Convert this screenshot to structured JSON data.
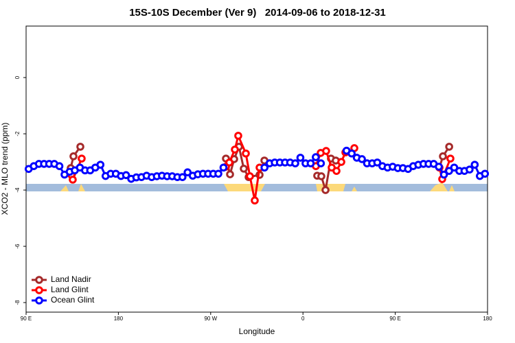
{
  "chart_data": {
    "type": "line",
    "title": "15S-10S December (Ver 9)   2014-09-06 to 2018-12-31",
    "xlabel": "Longitude",
    "ylabel": "XCO2 - MLO trend (ppm)",
    "xlim": [
      90,
      540
    ],
    "ylim": [
      -8.34,
      1.83
    ],
    "xticks": [
      {
        "value": 90,
        "label": "90 E"
      },
      180,
      {
        "value": 270,
        "label": "90 W"
      },
      {
        "value": 360,
        "label": "0"
      },
      {
        "value": 450,
        "label": "90 E"
      },
      {
        "value": 540,
        "label": "180"
      }
    ],
    "yticks": [
      0,
      -2,
      -4,
      -6,
      -8
    ],
    "legend": "bottom-left",
    "series": [
      {
        "name": "Land Nadir",
        "color": "#a52a2a",
        "x": [
          133.5,
          136.2,
          142.9,
          null,
          284.9,
          288.9,
          292.9,
          297.6,
          302.3,
          307.0,
          317.7,
          322.4,
          null,
          373.9,
          377.9,
          382.0,
          387.3,
          392.0,
          null,
          493.1,
          496.5,
          502.6
        ],
        "values": [
          -3.22,
          -2.8,
          -2.46,
          null,
          -2.88,
          -3.44,
          -2.9,
          -2.46,
          -3.24,
          -3.54,
          -3.46,
          -2.95,
          null,
          -3.49,
          -3.51,
          -4.0,
          -2.88,
          -2.95,
          null,
          -3.2,
          -2.8,
          -2.46
        ]
      },
      {
        "name": "Land Glint",
        "color": "#ff0000",
        "x": [
          134.2,
          135.5,
          144.2,
          null,
          284.9,
          288.2,
          293.6,
          296.9,
          304.3,
          308.3,
          313.0,
          317.7,
          null,
          372.6,
          377.3,
          382.6,
          388.0,
          392.7,
          397.4,
          401.4,
          null,
          410.1,
          null,
          493.1,
          495.8,
          503.8
        ],
        "values": [
          -3.46,
          -3.63,
          -2.88,
          null,
          -3.17,
          -3.02,
          -2.56,
          -2.07,
          -2.7,
          -3.51,
          -4.37,
          -3.2,
          null,
          -3.15,
          -2.68,
          -2.61,
          -3.2,
          -3.32,
          -3.0,
          -2.66,
          null,
          -2.51,
          null,
          -3.2,
          -3.61,
          -2.88
        ]
      },
      {
        "name": "Ocean Glint",
        "color": "#0000ff",
        "x": [
          92.5,
          97.5,
          102.5,
          107.5,
          112.5,
          117.5,
          122.5,
          127.5,
          132.5,
          137.5,
          142.5,
          147.5,
          152.5,
          157.5,
          162.5,
          167.5,
          172.5,
          177.5,
          182.5,
          187.5,
          192.5,
          197.5,
          202.5,
          207.5,
          212.5,
          217.5,
          222.5,
          227.5,
          232.5,
          237.5,
          242.5,
          247.5,
          252.5,
          257.5,
          262.5,
          267.5,
          272.5,
          277.5,
          282.5,
          287.5,
          292.5,
          297.5,
          302.5,
          307.5,
          312.5,
          317.5,
          322.5,
          327.5,
          332.5,
          337.5,
          342.5,
          347.5,
          352.5,
          357.5,
          362.5,
          367.5,
          372.5,
          377.5,
          382.5,
          387.5,
          392.5,
          397.5,
          402.5,
          407.5,
          412.5,
          417.5,
          422.5,
          427.5,
          432.5,
          437.5,
          442.5,
          447.5,
          452.5,
          457.5,
          462.5,
          467.5,
          472.5,
          477.5,
          482.5,
          487.5,
          492.5,
          497.5,
          502.5,
          507.5,
          512.5,
          517.5,
          522.5,
          527.5,
          532.5,
          537.5
        ],
        "values": [
          -3.25,
          -3.15,
          -3.07,
          -3.07,
          -3.07,
          -3.07,
          -3.15,
          -3.45,
          -3.35,
          -3.3,
          -3.2,
          -3.3,
          -3.3,
          -3.2,
          -3.1,
          -3.5,
          -3.42,
          -3.42,
          -3.5,
          -3.47,
          -3.6,
          -3.55,
          -3.54,
          -3.49,
          -3.54,
          -3.51,
          -3.49,
          -3.51,
          -3.51,
          -3.54,
          -3.54,
          -3.37,
          -3.49,
          -3.44,
          -3.42,
          -3.42,
          -3.42,
          -3.42,
          -3.2,
          null,
          null,
          null,
          null,
          null,
          null,
          null,
          -3.2,
          -3.05,
          -3.02,
          -3.02,
          -3.02,
          -3.02,
          -3.05,
          -2.85,
          -3.05,
          -3.05,
          -2.83,
          -3.05,
          null,
          null,
          null,
          null,
          -2.6,
          -2.7,
          -2.85,
          -2.9,
          -3.05,
          -3.05,
          -3.02,
          -3.15,
          -3.2,
          -3.17,
          -3.22,
          -3.22,
          -3.25,
          -3.15,
          -3.1,
          -3.07,
          -3.07,
          -3.07,
          -3.17,
          -3.45,
          -3.32,
          -3.2,
          -3.32,
          -3.32,
          -3.27,
          -3.1,
          -3.5,
          -3.42
        ]
      }
    ]
  }
}
